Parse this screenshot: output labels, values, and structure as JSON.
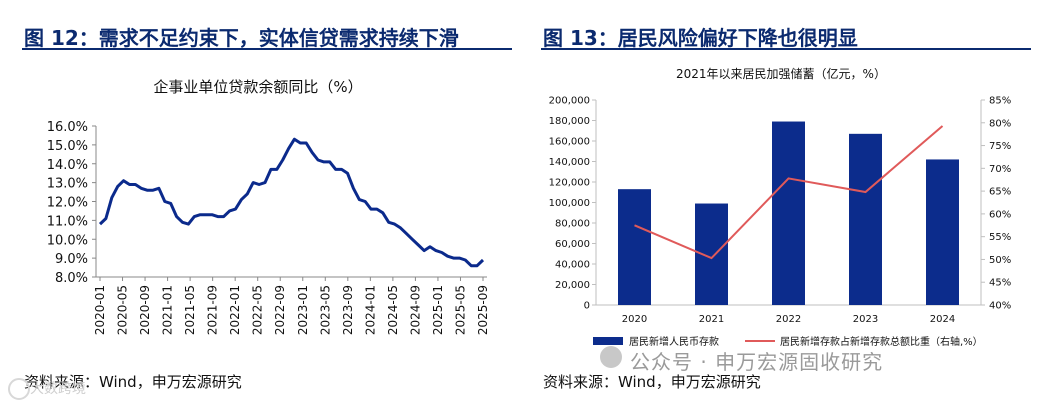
{
  "left": {
    "figure_title": "图 12：需求不足约束下，实体信贷需求持续下滑",
    "source": "资料来源：Wind，申万宏源研究"
  },
  "right": {
    "figure_title": "图 13：居民风险偏好下降也很明显",
    "source": "资料来源：Wind，申万宏源研究"
  },
  "watermark": "公众号 · 申万宏源固收研究",
  "corner_watermark": "大数跨境",
  "colors": {
    "navy": "#0b2a6f",
    "bar": "#0c2c8c",
    "line_red": "#e05a5a",
    "axis_gray": "#bfbfbf"
  },
  "chart_data": [
    {
      "type": "line",
      "title": "企事业单位贷款余额同比（%）",
      "xlabel": "",
      "ylabel": "",
      "ylim": [
        8.0,
        16.0
      ],
      "yticks": [
        "16.0%",
        "15.0%",
        "14.0%",
        "13.0%",
        "12.0%",
        "11.0%",
        "10.0%",
        "9.0%",
        "8.0%"
      ],
      "ytick_values": [
        16,
        15,
        14,
        13,
        12,
        11,
        10,
        9,
        8
      ],
      "xticks": [
        "2020-01",
        "2020-05",
        "2020-09",
        "2021-01",
        "2021-05",
        "2021-09",
        "2022-01",
        "2022-05",
        "2022-09",
        "2023-01",
        "2023-05",
        "2023-09",
        "2024-01",
        "2024-05",
        "2024-09",
        "2025-01",
        "2025-05",
        "2025-09"
      ],
      "series": [
        {
          "name": "企事业单位贷款余额同比",
          "color": "#0b2a8c",
          "values": [
            10.8,
            11.1,
            12.2,
            12.8,
            13.1,
            12.9,
            12.9,
            12.7,
            12.6,
            12.6,
            12.7,
            12.0,
            11.9,
            11.2,
            10.9,
            10.8,
            11.2,
            11.3,
            11.3,
            11.3,
            11.2,
            11.2,
            11.5,
            11.6,
            12.1,
            12.4,
            13.0,
            12.9,
            13.0,
            13.7,
            13.7,
            14.2,
            14.8,
            15.3,
            15.1,
            15.1,
            14.6,
            14.2,
            14.1,
            14.1,
            13.7,
            13.7,
            13.5,
            12.7,
            12.1,
            12.0,
            11.6,
            11.6,
            11.4,
            10.9,
            10.8,
            10.6,
            10.3,
            10.0,
            9.7,
            9.4,
            9.6,
            9.4,
            9.3,
            9.1,
            9.0,
            9.0,
            8.9,
            8.6,
            8.6,
            8.9
          ]
        }
      ]
    },
    {
      "type": "bar",
      "title": "2021年以来居民加强储蓄（亿元，%）",
      "categories": [
        "2020",
        "2021",
        "2022",
        "2023",
        "2024"
      ],
      "ylim": [
        0,
        200000
      ],
      "yticks": [
        "200,000",
        "180,000",
        "160,000",
        "140,000",
        "120,000",
        "100,000",
        "80,000",
        "60,000",
        "40,000",
        "20,000",
        "0"
      ],
      "ytick_values": [
        200000,
        180000,
        160000,
        140000,
        120000,
        100000,
        80000,
        60000,
        40000,
        20000,
        0
      ],
      "y2lim": [
        40,
        85
      ],
      "y2ticks": [
        "85%",
        "80%",
        "75%",
        "70%",
        "65%",
        "60%",
        "55%",
        "50%",
        "45%",
        "40%"
      ],
      "y2tick_values": [
        85,
        80,
        75,
        70,
        65,
        60,
        55,
        50,
        45,
        40
      ],
      "series": [
        {
          "name": "居民新增人民币存款",
          "axis": "left",
          "kind": "bar",
          "color": "#0c2c8c",
          "values": [
            113000,
            99000,
            179000,
            167000,
            142000
          ]
        },
        {
          "name": "居民新增存款占新增存款总额比重（右轴,%）",
          "axis": "right",
          "kind": "line",
          "color": "#e05a5a",
          "values": [
            57.5,
            50.3,
            67.8,
            64.8,
            79.3
          ]
        }
      ]
    }
  ]
}
